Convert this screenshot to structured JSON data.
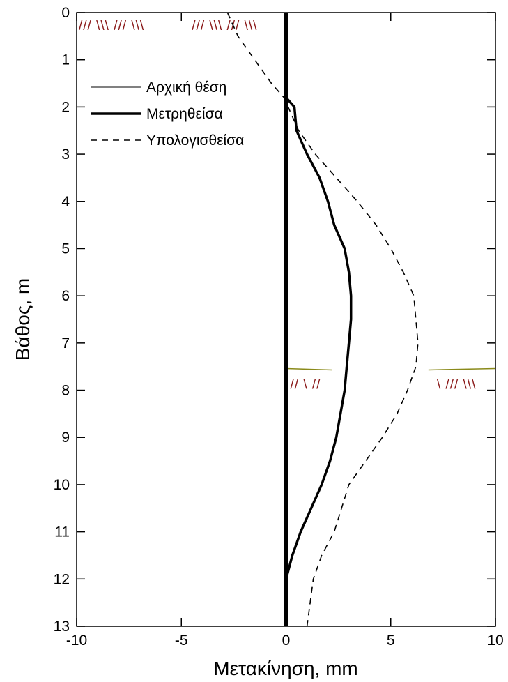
{
  "chart_data": {
    "type": "line",
    "xlabel": "Μετακίνηση, mm",
    "ylabel": "Βάθος, m",
    "xlim": [
      -10,
      10
    ],
    "ylim": [
      13,
      0
    ],
    "y_inverted": true,
    "xticks": [
      "-10",
      "-5",
      "0",
      "5",
      "10"
    ],
    "yticks": [
      "0",
      "1",
      "2",
      "3",
      "4",
      "5",
      "6",
      "7",
      "8",
      "9",
      "10",
      "11",
      "12",
      "13"
    ],
    "grid": false,
    "legend_position": "top-left",
    "series": [
      {
        "name": "Αρχική θέση",
        "style": "thin",
        "x": [
          0,
          0
        ],
        "y": [
          0,
          13
        ]
      },
      {
        "name": "Μετρηθείσα",
        "style": "thick",
        "x": [
          0,
          0,
          0.2,
          0.4,
          0.5,
          1.0,
          1.6,
          2.0,
          2.3,
          2.8,
          3.0,
          3.1,
          3.1,
          3.0,
          2.9,
          2.8,
          2.6,
          2.4,
          2.1,
          1.7,
          1.2,
          0.7,
          0.3,
          0,
          0
        ],
        "y": [
          0,
          1.8,
          1.9,
          2.0,
          2.5,
          3.0,
          3.5,
          4.0,
          4.5,
          5.0,
          5.5,
          6.0,
          6.5,
          7.0,
          7.5,
          8.0,
          8.5,
          9.0,
          9.5,
          10.0,
          10.5,
          11.0,
          11.5,
          12.0,
          13.0
        ]
      },
      {
        "name": "Υπολογισθείσα",
        "style": "dashed",
        "x": [
          -2.8,
          -2.3,
          -1.5,
          -0.7,
          -0.1,
          0.6,
          1.4,
          2.4,
          3.4,
          4.3,
          5.0,
          5.6,
          6.1,
          6.3,
          6.2,
          5.8,
          5.3,
          4.6,
          3.8,
          3.0,
          2.3,
          1.7,
          1.3,
          1.0
        ],
        "y": [
          0,
          0.5,
          1.0,
          1.5,
          1.8,
          2.5,
          3.0,
          3.5,
          4.0,
          4.5,
          5.0,
          5.5,
          6.0,
          7.0,
          7.5,
          8.0,
          8.5,
          9.0,
          9.5,
          10.0,
          11.0,
          11.5,
          12.0,
          13.0
        ]
      }
    ],
    "ground_levels": [
      {
        "depth": 0,
        "hatch_segments": [
          "/// \\\\\\ /// \\\\\\",
          "/// \\\\\\ /// \\\\\\"
        ]
      },
      {
        "depth": 7.6,
        "hatch_segments": [
          "// \\ //",
          "\\ /// \\\\\\"
        ]
      }
    ],
    "colors": {
      "line": "#000000",
      "hatch": "#8b1a1a",
      "ground_line": "#8a8a1a",
      "wall": "#000000"
    }
  }
}
